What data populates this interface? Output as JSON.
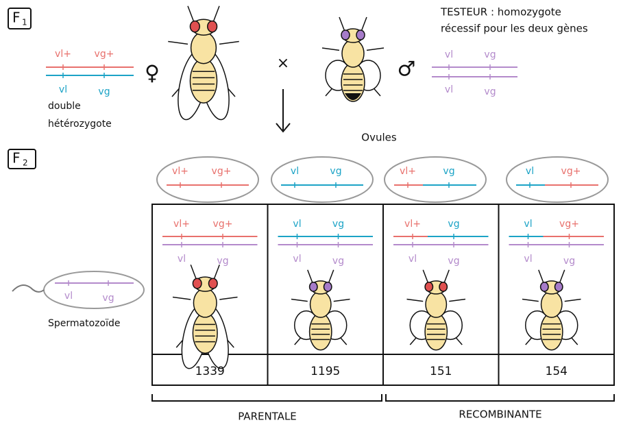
{
  "f1": {
    "letter": "F",
    "index": "1"
  },
  "tester_note": [
    "TESTEUR : homozygote",
    "récessif pour les deux gènes"
  ],
  "female": {
    "symbol": "♀",
    "top": [
      "vl+",
      "vg+"
    ],
    "bottom": [
      "vl",
      "vg"
    ],
    "label": [
      "double",
      "hétérozygote"
    ]
  },
  "cross": "×",
  "male": {
    "symbol": "♂",
    "top": [
      "vl",
      "vg"
    ],
    "bottom": [
      "vl",
      "vg"
    ]
  },
  "ovules_label": "Ovules",
  "f2": {
    "letter": "F",
    "index": "2"
  },
  "ovules": [
    [
      "vl+",
      "vg+"
    ],
    [
      "vl",
      "vg"
    ],
    [
      "vl+",
      "vg"
    ],
    [
      "vl",
      "vg+"
    ]
  ],
  "sperm": {
    "alleles": [
      "vl",
      "vg"
    ],
    "label": "Spermatozoïde"
  },
  "offspring": [
    {
      "top": [
        "vl+",
        "vg+"
      ],
      "bottom": [
        "vl",
        "vg"
      ],
      "count": 1339
    },
    {
      "top": [
        "vl",
        "vg"
      ],
      "bottom": [
        "vl",
        "vg"
      ],
      "count": 1195
    },
    {
      "top": [
        "vl+",
        "vg"
      ],
      "bottom": [
        "vl",
        "vg"
      ],
      "count": 151
    },
    {
      "top": [
        "vl",
        "vg+"
      ],
      "bottom": [
        "vl",
        "vg"
      ],
      "count": 154
    }
  ],
  "groups": [
    "PARENTALE",
    "RECOMBINANTE"
  ]
}
